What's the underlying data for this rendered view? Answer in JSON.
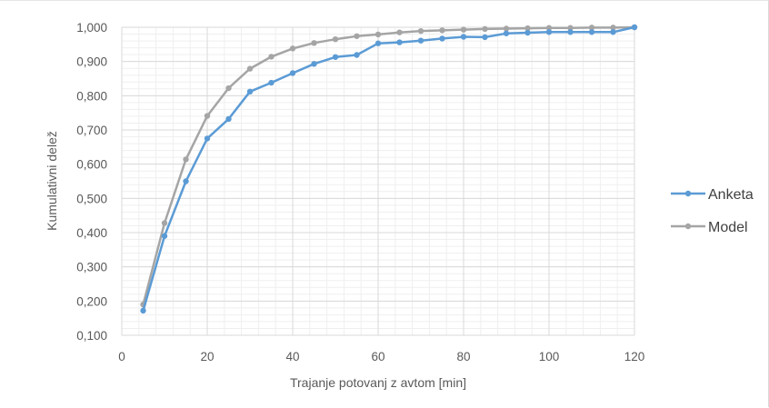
{
  "chart_data": {
    "type": "line",
    "xlabel": "Trajanje potovanj z avtom  [min]",
    "ylabel": "Kumulativni delež",
    "xlim": [
      0,
      120
    ],
    "ylim": [
      0.1,
      1.0
    ],
    "x_ticks": [
      0,
      20,
      40,
      60,
      80,
      100,
      120
    ],
    "y_ticks": [
      0.1,
      0.2,
      0.3,
      0.4,
      0.5,
      0.6,
      0.7,
      0.8,
      0.9,
      1.0
    ],
    "y_tick_labels": [
      "0,100",
      "0,200",
      "0,300",
      "0,400",
      "0,500",
      "0,600",
      "0,700",
      "0,800",
      "0,900",
      "1,000"
    ],
    "x_tick_labels": [
      "0",
      "20",
      "40",
      "60",
      "80",
      "100",
      "120"
    ],
    "grid": true,
    "legend_position": "right",
    "series": [
      {
        "name": "Anketa",
        "color": "#5b9bd5",
        "x": [
          5,
          10,
          15,
          20,
          25,
          30,
          35,
          40,
          45,
          50,
          55,
          60,
          65,
          70,
          75,
          80,
          85,
          90,
          95,
          100,
          105,
          110,
          115,
          120
        ],
        "y": [
          0.172,
          0.39,
          0.55,
          0.675,
          0.732,
          0.812,
          0.838,
          0.866,
          0.893,
          0.913,
          0.919,
          0.953,
          0.956,
          0.961,
          0.967,
          0.972,
          0.971,
          0.982,
          0.984,
          0.986,
          0.986,
          0.986,
          0.986,
          1.0
        ]
      },
      {
        "name": "Model",
        "color": "#a5a5a5",
        "x": [
          5,
          10,
          15,
          20,
          25,
          30,
          35,
          40,
          45,
          50,
          55,
          60,
          65,
          70,
          75,
          80,
          85,
          90,
          95,
          100,
          105,
          110,
          115,
          120
        ],
        "y": [
          0.19,
          0.428,
          0.614,
          0.741,
          0.822,
          0.879,
          0.914,
          0.938,
          0.954,
          0.965,
          0.974,
          0.979,
          0.985,
          0.989,
          0.991,
          0.993,
          0.995,
          0.996,
          0.997,
          0.998,
          0.998,
          0.999,
          0.999,
          1.0
        ]
      }
    ]
  }
}
